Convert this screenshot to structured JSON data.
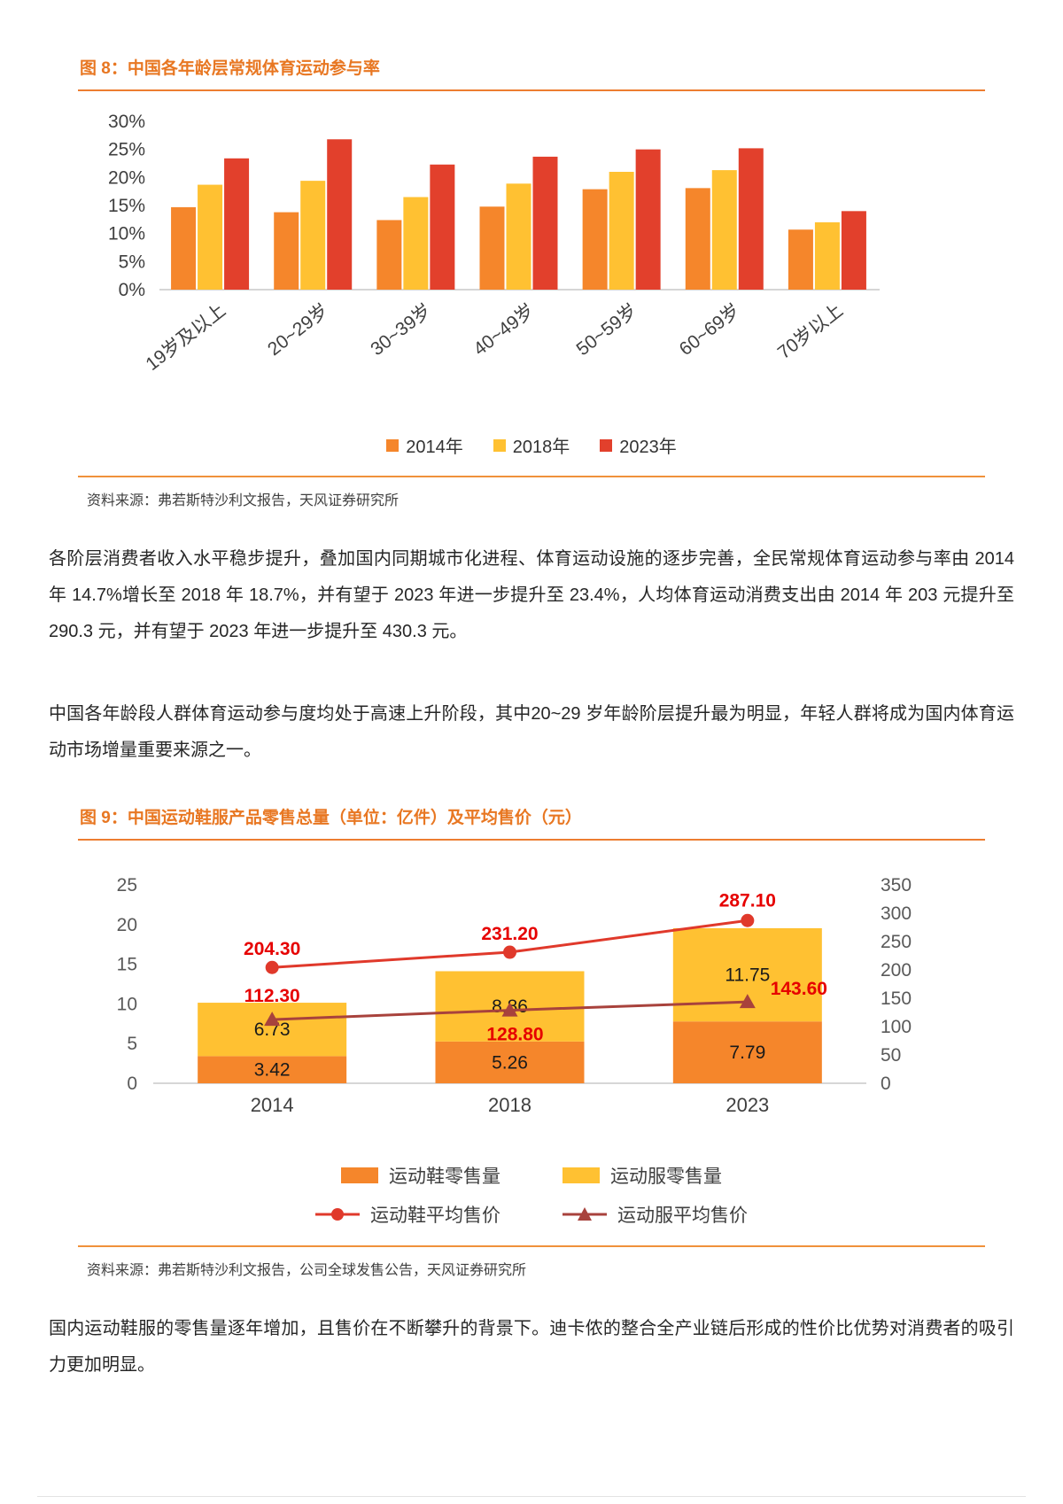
{
  "figure8": {
    "title": "图 8：中国各年龄层常规体育运动参与率",
    "source": "资料来源：弗若斯特沙利文报告，天风证券研究所"
  },
  "figure9": {
    "title": "图 9：中国运动鞋服产品零售总量（单位：亿件）及平均售价（元）",
    "source": "资料来源：弗若斯特沙利文报告，公司全球发售公告，天风证券研究所"
  },
  "body": {
    "para1": "各阶层消费者收入水平稳步提升，叠加国内同期城市化进程、体育运动设施的逐步完善，全民常规体育运动参与率由 2014 年 14.7%增长至 2018 年 18.7%，并有望于 2023 年进一步提升至 23.4%，人均体育运动消费支出由 2014 年 203 元提升至 290.3 元，并有望于 2023 年进一步提升至 430.3 元。",
    "para2": "中国各年龄段人群体育运动参与度均处于高速上升阶段，其中20~29 岁年龄阶层提升最为明显，年轻人群将成为国内体育运动市场增量重要来源之一。",
    "para3": "国内运动鞋服的零售量逐年增加，且售价在不断攀升的背景下。迪卡侬的整合全产业链后形成的性价比优势对消费者的吸引力更加明显。"
  },
  "chart_data": [
    {
      "id": "fig8",
      "type": "bar",
      "title": "中国各年龄层常规体育运动参与率",
      "categories": [
        "19岁及以上",
        "20~29岁",
        "30~39岁",
        "40~49岁",
        "50~59岁",
        "60~69岁",
        "70岁以上"
      ],
      "series": [
        {
          "name": "2014年",
          "color": "#F5862B",
          "values": [
            14.7,
            13.8,
            12.4,
            14.8,
            17.9,
            18.1,
            10.7
          ]
        },
        {
          "name": "2018年",
          "color": "#FFC132",
          "values": [
            18.7,
            19.4,
            16.5,
            18.9,
            21.0,
            21.3,
            12.0
          ]
        },
        {
          "name": "2023年",
          "color": "#E2402C",
          "values": [
            23.4,
            26.8,
            22.3,
            23.7,
            25.0,
            25.2,
            14.0
          ]
        }
      ],
      "ylim": [
        0,
        30
      ],
      "ytick_step": 5,
      "ytick_suffix": "%",
      "grid": false,
      "legend_position": "bottom"
    },
    {
      "id": "fig9",
      "type": "combo",
      "title": "中国运动鞋服产品零售总量（单位：亿件）及平均售价（元）",
      "categories": [
        "2014",
        "2018",
        "2023"
      ],
      "bar_series": [
        {
          "name": "运动鞋零售量",
          "color": "#F5862B",
          "values": [
            3.42,
            5.26,
            7.79
          ]
        },
        {
          "name": "运动服零售量",
          "color": "#FFC132",
          "values": [
            6.73,
            8.86,
            11.75
          ]
        }
      ],
      "line_series": [
        {
          "name": "运动鞋平均售价",
          "color": "#E0392B",
          "marker": "circle",
          "axis": "right",
          "values": [
            204.3,
            231.2,
            287.1
          ]
        },
        {
          "name": "运动服平均售价",
          "color": "#A8423C",
          "marker": "triangle",
          "axis": "right",
          "values": [
            112.3,
            128.8,
            143.6
          ]
        }
      ],
      "left_axis": {
        "min": 0,
        "max": 25,
        "step": 5
      },
      "right_axis": {
        "min": 0,
        "max": 350,
        "step": 50
      },
      "value_label_color": "#1A1A1A",
      "price_label_color": "#E60000",
      "grid": false,
      "legend_position": "bottom"
    }
  ]
}
